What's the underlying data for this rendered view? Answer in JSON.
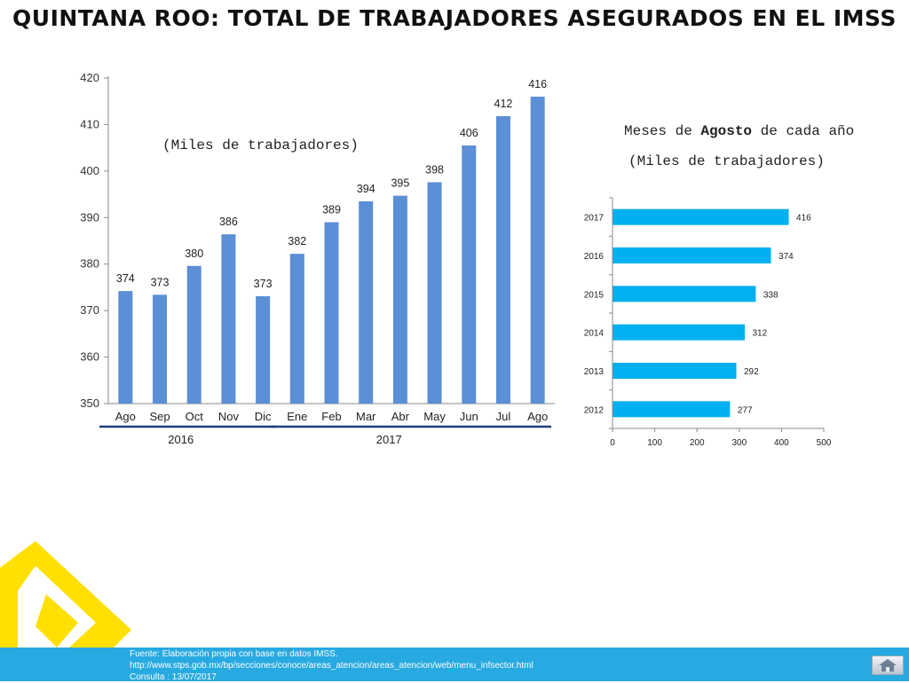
{
  "title": "QUINTANA ROO: TOTAL DE TRABAJADORES ASEGURADOS EN EL IMSS",
  "notes": {
    "units_main": "(Miles de trabajadores)",
    "months_prefix": "Meses de",
    "months_bold": "Agosto",
    "months_suffix": "de cada año",
    "units_bar": "(Miles de trabajadores)"
  },
  "footer": {
    "line1": "Fuente: Elaboración propia con base en  datos IMSS.",
    "line2": " http://www.stps.gob.mx/bp/secciones/conoce/areas_atencion/areas_atencion/web/menu_infsector.html",
    "line3": "Consulta : 13/07/2017"
  },
  "colors": {
    "column": "#5b8fd6",
    "bar": "#00b0f0",
    "footer": "#27a9e1",
    "underline": "#1f3d7a",
    "logo": "#ffe000"
  },
  "chart_data": [
    {
      "type": "bar",
      "orientation": "vertical",
      "categories": [
        "Ago",
        "Sep",
        "Oct",
        "Nov",
        "Dic",
        "Ene",
        "Feb",
        "Mar",
        "Abr",
        "May",
        "Jun",
        "Jul",
        "Ago"
      ],
      "values": [
        374,
        373,
        380,
        386,
        373,
        382,
        389,
        394,
        395,
        398,
        406,
        412,
        416
      ],
      "plot_values": [
        374.2,
        373.4,
        379.6,
        386.4,
        373.1,
        382.2,
        389.0,
        393.5,
        394.7,
        397.6,
        405.5,
        411.8,
        416.0
      ],
      "year_groups": [
        {
          "label": "2016",
          "start": 0,
          "end": 4
        },
        {
          "label": "2017",
          "start": 5,
          "end": 12
        }
      ],
      "ylim": [
        350,
        420
      ],
      "yticks": [
        350,
        360,
        370,
        380,
        390,
        400,
        410,
        420
      ],
      "grid": false
    },
    {
      "type": "bar",
      "orientation": "horizontal",
      "categories": [
        "2017",
        "2016",
        "2015",
        "2014",
        "2013",
        "2012"
      ],
      "values": [
        416,
        374,
        338,
        312,
        292,
        277
      ],
      "xlim": [
        0,
        500
      ],
      "xticks": [
        0,
        100,
        200,
        300,
        400,
        500
      ],
      "grid": false
    }
  ]
}
